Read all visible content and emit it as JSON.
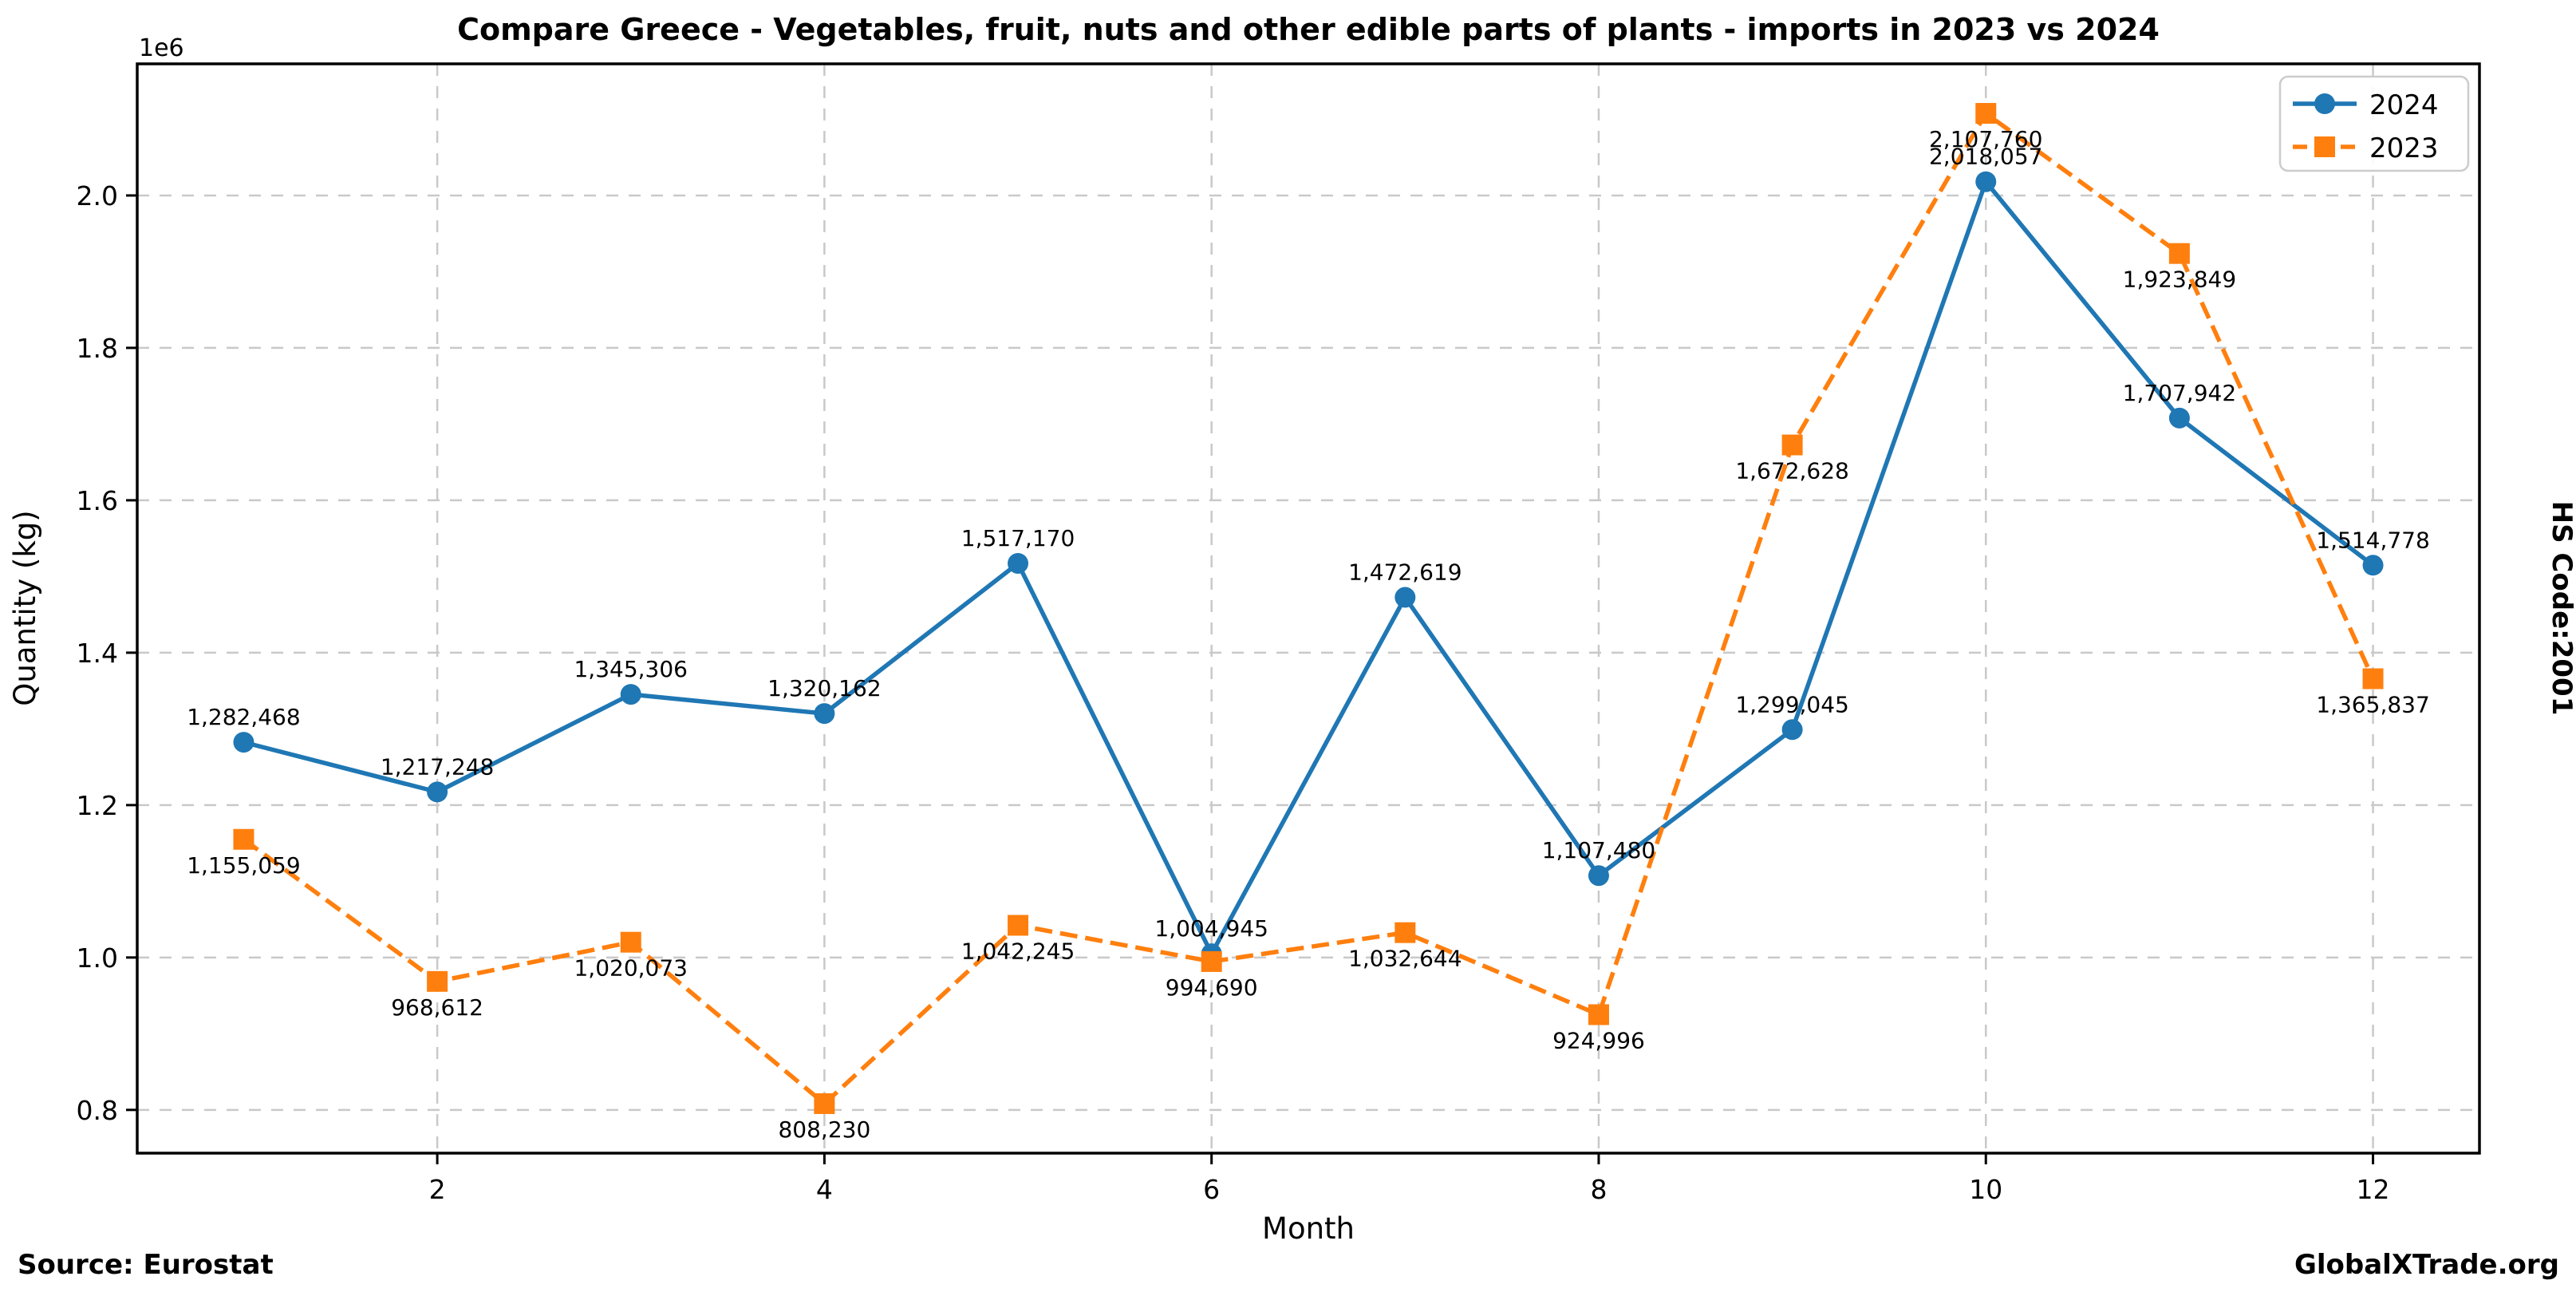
{
  "footer": {
    "source": "Source: Eurostat",
    "brand": "GlobalXTrade.org"
  },
  "right_label": "HS Code:2001",
  "colors": {
    "background": "#ffffff",
    "spine": "#000000",
    "grid": "#c9c9c9",
    "text": "#000000",
    "legend_border": "#cccccc",
    "series_2024": "#1f77b4",
    "series_2023": "#ff7f0e"
  },
  "chart_data": {
    "type": "line",
    "title": "Compare Greece - Vegetables, fruit, nuts and other edible parts of plants - imports in 2023 vs 2024",
    "xlabel": "Month",
    "ylabel": "Quantity (kg)",
    "offset_text": "1e6",
    "grid": true,
    "legend_position": "upper right",
    "x": [
      1,
      2,
      3,
      4,
      5,
      6,
      7,
      8,
      9,
      10,
      11,
      12
    ],
    "xlim": [
      0.45,
      12.55
    ],
    "ylim": [
      743253,
      2172737
    ],
    "xticks": [
      2,
      4,
      6,
      8,
      10,
      12
    ],
    "xtick_labels": [
      "2",
      "4",
      "6",
      "8",
      "10",
      "12"
    ],
    "yticks": [
      800000,
      1000000,
      1200000,
      1400000,
      1600000,
      1800000,
      2000000
    ],
    "ytick_labels": [
      "0.8",
      "1.0",
      "1.2",
      "1.4",
      "1.6",
      "1.8",
      "2.0"
    ],
    "series": [
      {
        "name": "2024",
        "color": "#1f77b4",
        "marker": "circle",
        "linestyle": "solid",
        "label_side": "above",
        "values": [
          1282468,
          1217248,
          1345306,
          1320162,
          1517170,
          1004945,
          1472619,
          1107480,
          1299045,
          2018057,
          1707942,
          1514778
        ],
        "labels": [
          "1,282,468",
          "1,217,248",
          "1,345,306",
          "1,320,162",
          "1,517,170",
          "1,004,945",
          "1,472,619",
          "1,107,480",
          "1,299,045",
          "2,018,057",
          "1,707,942",
          "1,514,778"
        ]
      },
      {
        "name": "2023",
        "color": "#ff7f0e",
        "marker": "square",
        "linestyle": "dashed",
        "label_side": "below",
        "values": [
          1155059,
          968612,
          1020073,
          808230,
          1042245,
          994690,
          1032644,
          924996,
          1672628,
          2107760,
          1923849,
          1365837
        ],
        "labels": [
          "1,155,059",
          "968,612",
          "1,020,073",
          "808,230",
          "1,042,245",
          "994,690",
          "1,032,644",
          "924,996",
          "1,672,628",
          "2,107,760",
          "1,923,849",
          "1,365,837"
        ]
      }
    ]
  }
}
